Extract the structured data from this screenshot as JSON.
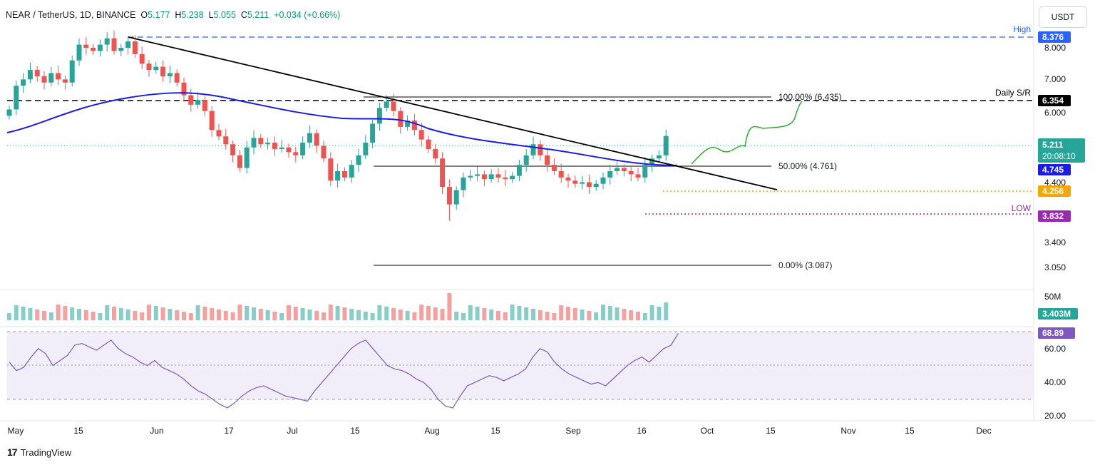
{
  "header": {
    "symbol": "NEAR / TetherUS, 1D, BINANCE",
    "open_label": "O",
    "open": "5.177",
    "high_label": "H",
    "high": "5.238",
    "low_label": "L",
    "low": "5.055",
    "close_label": "C",
    "close": "5.211",
    "change": "+0.034 (+0.66%)"
  },
  "currency_button": "USDT",
  "branding": "TradingView",
  "colors": {
    "up": "#26a69a",
    "down": "#ef5350",
    "ma": "#1c1ce8",
    "trendline": "#000000",
    "high_line": "#2962ff",
    "support_orange": "#f7a600",
    "low_purple": "#9c27b0",
    "projection": "#22aa22",
    "rsi": "#7e57c2",
    "rsi_band": "#ede7f6"
  },
  "chart_data": {
    "type": "candlestick",
    "pair": "NEAR / TetherUS",
    "timeframe": "1D",
    "exchange": "BINANCE",
    "x_labels": [
      "May",
      "15",
      "Jun",
      "17",
      "Jul",
      "15",
      "Aug",
      "15",
      "Sep",
      "16",
      "Oct",
      "15",
      "Nov",
      "15",
      "Dec"
    ],
    "y_ticks": [
      "8.000",
      "7.000",
      "6.000",
      "4.400",
      "3.400",
      "3.050"
    ],
    "last_price": "5.211",
    "countdown": "20:08:10",
    "price_labels": [
      {
        "name": "High",
        "value": "8.376",
        "color": "#2962ff"
      },
      {
        "name": "Daily S/R",
        "value": "6.354",
        "color": "#000000"
      },
      {
        "name": "",
        "value": "4.745",
        "color": "#1c1ce8"
      },
      {
        "name": "",
        "value": "4.256",
        "color": "#f7a600"
      },
      {
        "name": "LOW",
        "value": "3.832",
        "color": "#9c27b0"
      }
    ],
    "fibonacci": [
      {
        "label": "100.00% (6.435)",
        "value": 6.435
      },
      {
        "label": "50.00% (4.761)",
        "value": 4.761
      },
      {
        "label": "0.00% (3.087)",
        "value": 3.087
      }
    ],
    "closes": [
      6.05,
      6.8,
      7.0,
      7.3,
      7.1,
      6.9,
      7.2,
      7.0,
      6.9,
      7.6,
      8.1,
      8.0,
      7.9,
      8.1,
      8.3,
      7.9,
      8.0,
      8.2,
      7.8,
      7.5,
      7.3,
      7.4,
      7.1,
      7.2,
      6.9,
      6.5,
      6.2,
      6.35,
      6.0,
      5.4,
      5.2,
      4.95,
      4.6,
      4.2,
      4.85,
      5.15,
      4.95,
      5.0,
      4.8,
      4.85,
      4.7,
      4.6,
      5.0,
      5.3,
      4.9,
      4.5,
      3.8,
      4.1,
      3.9,
      4.3,
      4.6,
      5.0,
      5.6,
      6.1,
      6.3,
      6.0,
      5.5,
      5.7,
      5.4,
      5.1,
      4.8,
      4.5,
      3.6,
      3.05,
      3.5,
      3.9,
      3.95,
      4.0,
      3.85,
      4.0,
      3.9,
      3.85,
      3.95,
      4.3,
      4.6,
      4.95,
      4.6,
      4.3,
      4.1,
      3.9,
      3.8,
      3.7,
      3.75,
      3.6,
      3.7,
      3.9,
      4.1,
      4.2,
      4.1,
      4.0,
      3.9,
      4.3,
      4.5,
      4.6,
      5.211
    ],
    "volume": {
      "value": "3.403M",
      "axis_label": "50M"
    },
    "rsi": {
      "value": "68.89",
      "ticks": [
        "60.00",
        "40.00",
        "20.00"
      ],
      "values": [
        52,
        47,
        49,
        55,
        60,
        57,
        50,
        53,
        56,
        62,
        63,
        61,
        59,
        62,
        65,
        60,
        57,
        55,
        52,
        50,
        53,
        49,
        47,
        45,
        42,
        38,
        35,
        33,
        30,
        27,
        25,
        28,
        32,
        35,
        37,
        38,
        36,
        34,
        32,
        31,
        30,
        29,
        35,
        40,
        45,
        50,
        55,
        60,
        63,
        65,
        60,
        55,
        50,
        48,
        47,
        45,
        42,
        40,
        36,
        30,
        26,
        25,
        32,
        38,
        40,
        42,
        44,
        43,
        41,
        43,
        45,
        48,
        55,
        60,
        58,
        52,
        48,
        45,
        43,
        41,
        39,
        40,
        38,
        42,
        46,
        50,
        53,
        55,
        52,
        56,
        60,
        62,
        68.89
      ]
    }
  }
}
